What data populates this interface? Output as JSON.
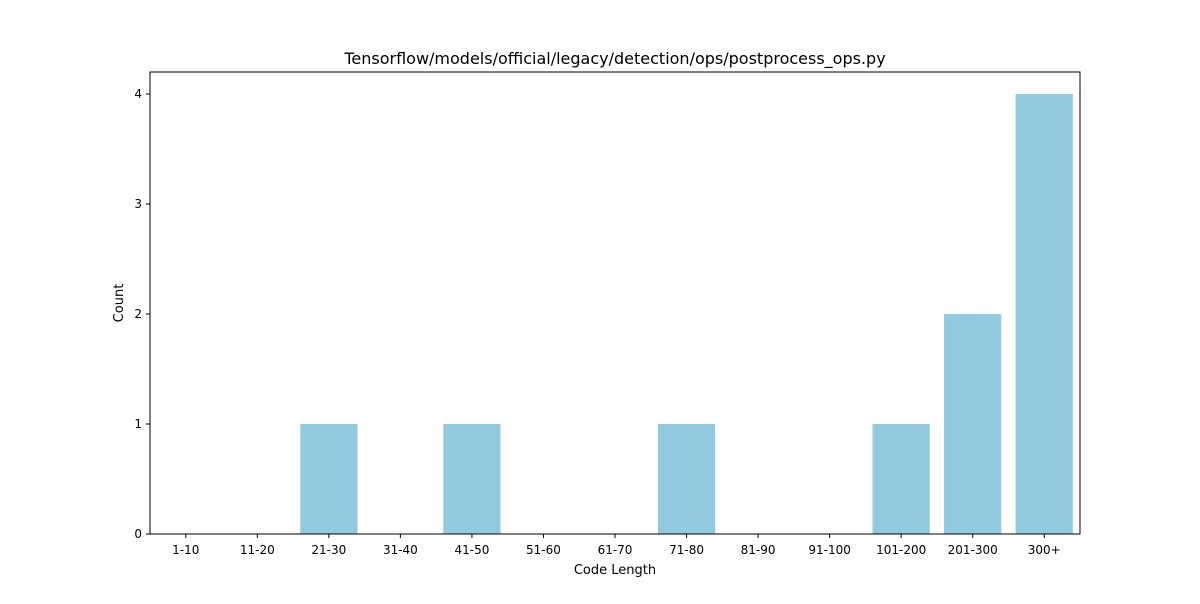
{
  "chart_data": {
    "type": "bar",
    "title": "Tensorflow/models/official/legacy/detection/ops/postprocess_ops.py",
    "xlabel": "Code Length",
    "ylabel": "Count",
    "categories": [
      "1-10",
      "11-20",
      "21-30",
      "31-40",
      "41-50",
      "51-60",
      "61-70",
      "71-80",
      "81-90",
      "91-100",
      "101-200",
      "201-300",
      "300+"
    ],
    "values": [
      0,
      0,
      1,
      0,
      1,
      0,
      0,
      1,
      0,
      0,
      1,
      2,
      4
    ],
    "ylim": [
      0,
      4.2
    ],
    "yticks": [
      0,
      1,
      2,
      3,
      4
    ],
    "grid": false,
    "bar_color": "#92c9df"
  }
}
